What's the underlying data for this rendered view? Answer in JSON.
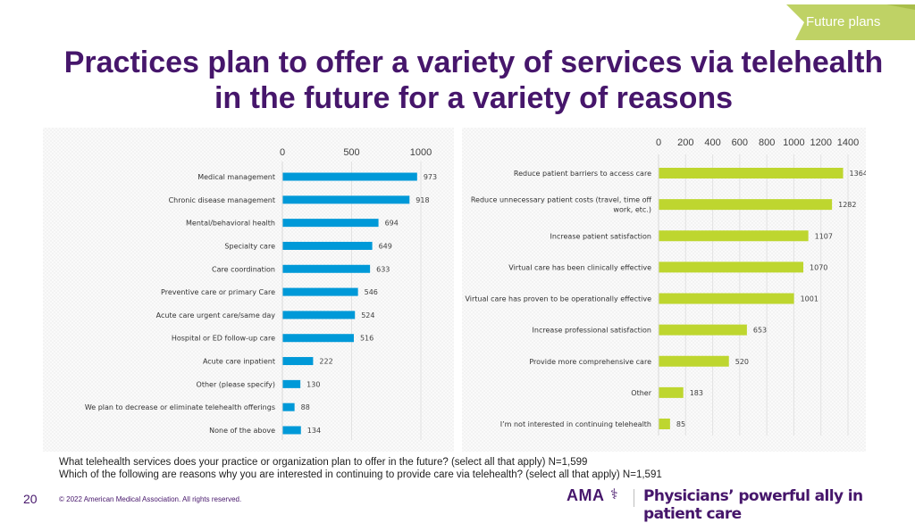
{
  "section_tag": {
    "label": "Future plans",
    "color": "#b9cf55"
  },
  "title": "Practices plan to offer a variety of services via telehealth in the future for a variety of reasons",
  "questions": [
    "What telehealth services does your practice or organization plan to offer in the future? (select all that apply) N=1,599",
    "Which of the following are reasons why you are interested in continuing to provide care via telehealth? (select all that apply) N=1,591"
  ],
  "footer": {
    "page_number": "20",
    "copyright": "© 2022 American Medical Association. All rights reserved.",
    "logo_text": "AMA",
    "logo_symbol": "⚕",
    "tagline": "Physicians’ powerful ally in patient care"
  },
  "colors": {
    "title": "#46166b",
    "left_bar": "#0099d8",
    "right_bar": "#bed62f"
  },
  "chart_data": [
    {
      "type": "bar",
      "orientation": "horizontal",
      "title": "",
      "xlabel": "",
      "ylabel": "",
      "xlim": [
        0,
        1000
      ],
      "xticks": [
        0,
        500,
        1000
      ],
      "grid": true,
      "axis_position": "top",
      "categories": [
        "Medical management",
        "Chronic disease management",
        "Mental/behavioral health",
        "Specialty care",
        "Care coordination",
        "Preventive care or primary Care",
        "Acute care urgent care/same day",
        "Hospital or ED follow-up care",
        "Acute care inpatient",
        "Other (please specify)",
        "We plan to decrease or eliminate telehealth offerings",
        "None of the above"
      ],
      "values": [
        973,
        918,
        694,
        649,
        633,
        546,
        524,
        516,
        222,
        130,
        88,
        134
      ],
      "color": "#0099d8"
    },
    {
      "type": "bar",
      "orientation": "horizontal",
      "title": "",
      "xlabel": "",
      "ylabel": "",
      "xlim": [
        0,
        1400
      ],
      "xticks": [
        0,
        200,
        400,
        600,
        800,
        1000,
        1200,
        1400
      ],
      "grid": true,
      "axis_position": "top",
      "categories": [
        [
          "Reduce patient barriers to access care"
        ],
        [
          "Reduce unnecessary patient costs (travel, time off",
          "work, etc.)"
        ],
        [
          "Increase patient satisfaction"
        ],
        [
          "Virtual care has been clinically effective"
        ],
        [
          "Virtual care has proven to be operationally effective"
        ],
        [
          "Increase professional satisfaction"
        ],
        [
          "Provide more comprehensive care"
        ],
        [
          "Other"
        ],
        [
          "I’m not interested in continuing telehealth"
        ]
      ],
      "values": [
        1364,
        1282,
        1107,
        1070,
        1001,
        653,
        520,
        183,
        85
      ],
      "color": "#bed62f"
    }
  ]
}
